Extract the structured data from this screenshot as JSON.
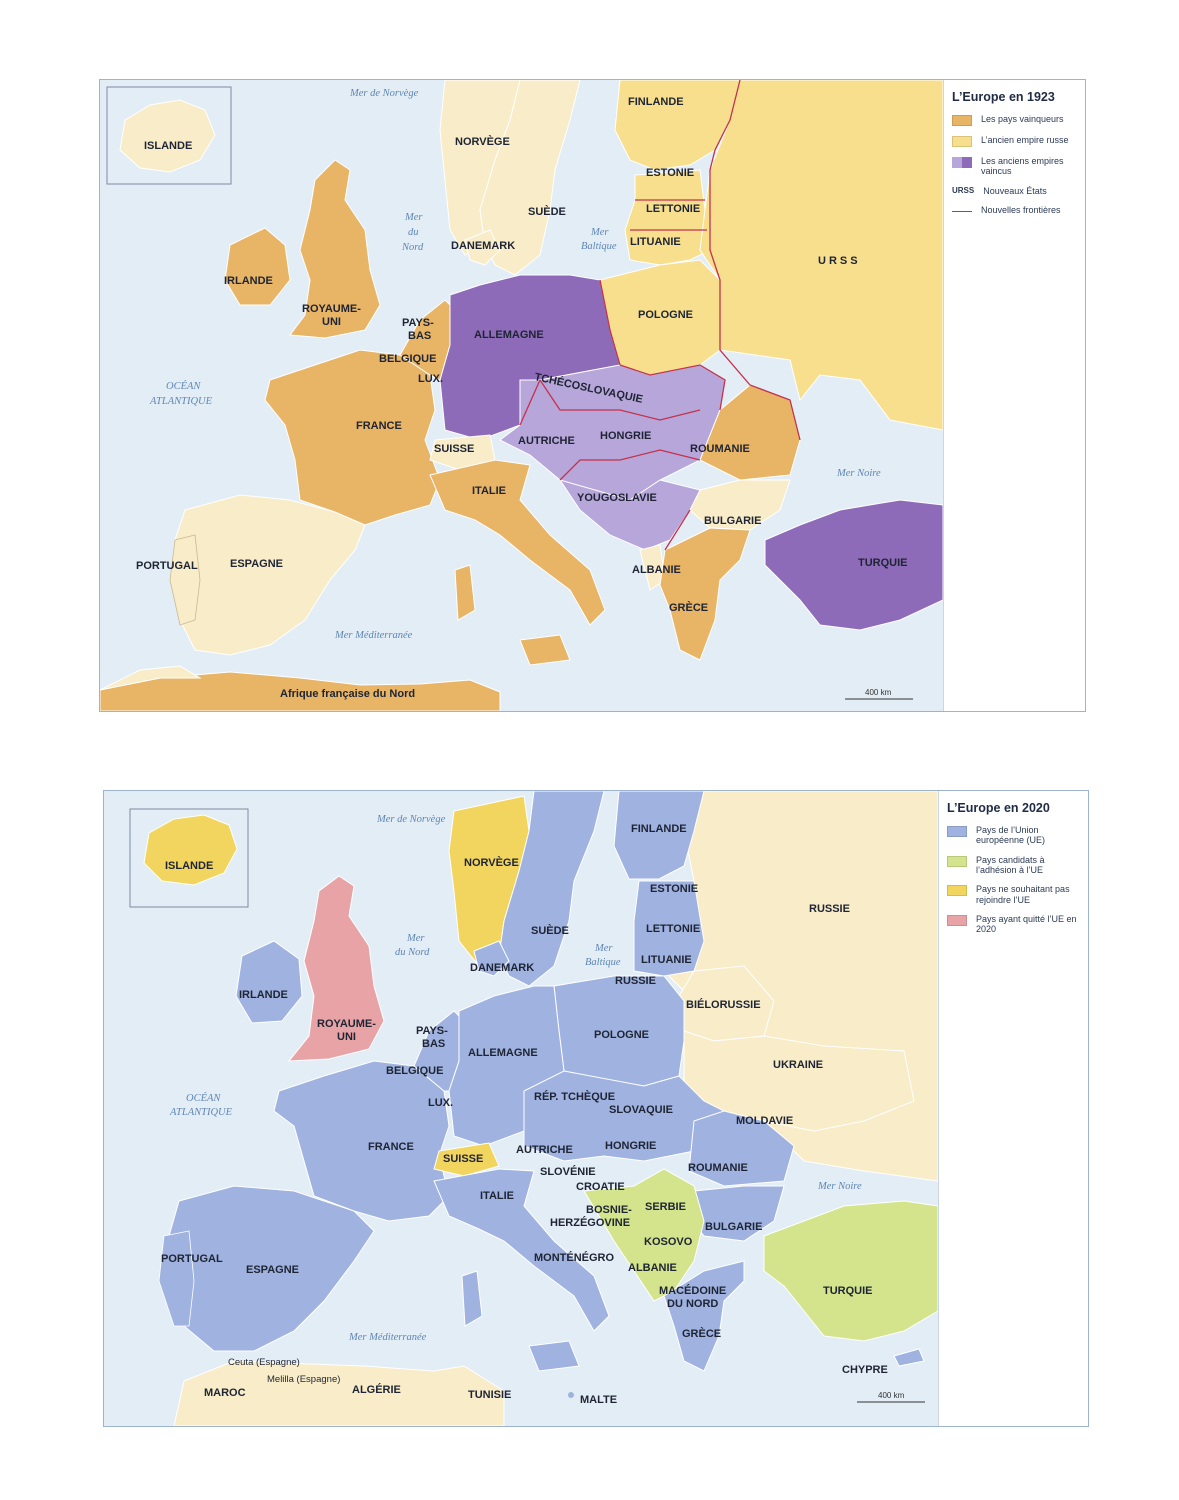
{
  "map1923": {
    "title": "L’Europe en 1923",
    "legend": [
      {
        "label": "Les pays vainqueurs",
        "color": "#e8b466"
      },
      {
        "label": "L’ancien empire russe",
        "color": "#f7df8e"
      },
      {
        "label": "Les anciens empires vaincus",
        "colors": [
          "#b7a6da",
          "#8e6bb8"
        ]
      },
      {
        "abbr": "URSS",
        "label": "Nouveaux États"
      },
      {
        "label": "Nouvelles frontières",
        "color": "#c4314b"
      }
    ],
    "countries": {
      "islande": "ISLANDE",
      "norvege": "NORVÈGE",
      "suede": "SUÈDE",
      "finlande": "FINLANDE",
      "estonie": "ESTONIE",
      "lettonie": "LETTONIE",
      "lituanie": "LITUANIE",
      "danemark": "DANEMARK",
      "irlande": "IRLANDE",
      "royaume_uni_1": "ROYAUME-",
      "royaume_uni_2": "UNI",
      "pays_bas_1": "PAYS-",
      "pays_bas_2": "BAS",
      "belgique": "BELGIQUE",
      "lux": "LUX.",
      "allemagne": "ALLEMAGNE",
      "pologne": "POLOGNE",
      "urss": "URSS",
      "tchecoslovaquie": "TCHÉCOSLOVAQUIE",
      "france": "FRANCE",
      "suisse": "SUISSE",
      "autriche": "AUTRICHE",
      "hongrie": "HONGRIE",
      "roumanie": "ROUMANIE",
      "italie": "ITALIE",
      "yougoslavie": "YOUGOSLAVIE",
      "bulgarie": "BULGARIE",
      "portugal": "PORTUGAL",
      "espagne": "ESPAGNE",
      "albanie": "ALBANIE",
      "grece": "GRÈCE",
      "turquie": "TURQUIE",
      "afrique": "Afrique française du Nord"
    },
    "seas": {
      "norvege_1": "Mer de Norvège",
      "nord_1": "Mer",
      "nord_2": "du",
      "nord_3": "Nord",
      "baltique_1": "Mer",
      "baltique_2": "Baltique",
      "atlantique_1": "OCÉAN",
      "atlantique_2": "ATLANTIQUE",
      "noire": "Mer Noire",
      "mediterranee": "Mer Méditerranée"
    },
    "scale": "400 km"
  },
  "map2020": {
    "title": "L’Europe en 2020",
    "legend": [
      {
        "label": "Pays de l’Union européenne (UE)",
        "color": "#9fb2e0"
      },
      {
        "label": "Pays candidats à l’adhésion à l’UE",
        "color": "#d3e48c"
      },
      {
        "label": "Pays ne souhaitant pas rejoindre l’UE",
        "color": "#f2d55e"
      },
      {
        "label": "Pays ayant quitté l’UE en 2020",
        "color": "#e8a3a6"
      }
    ],
    "countries": {
      "islande": "ISLANDE",
      "norvege": "NORVÈGE",
      "suede": "SUÈDE",
      "finlande": "FINLANDE",
      "estonie": "ESTONIE",
      "lettonie": "LETTONIE",
      "lituanie": "LITUANIE",
      "russie_kal": "RUSSIE",
      "russie": "RUSSIE",
      "danemark": "DANEMARK",
      "irlande": "IRLANDE",
      "royaume_uni_1": "ROYAUME-",
      "royaume_uni_2": "UNI",
      "pays_bas_1": "PAYS-",
      "pays_bas_2": "BAS",
      "belgique": "BELGIQUE",
      "lux": "LUX.",
      "allemagne": "ALLEMAGNE",
      "pologne": "POLOGNE",
      "bielorussie": "BIÉLORUSSIE",
      "ukraine": "UKRAINE",
      "rep_tcheque": "RÉP. TCHÈQUE",
      "slovaquie": "SLOVAQUIE",
      "moldavie": "MOLDAVIE",
      "france": "FRANCE",
      "suisse": "SUISSE",
      "autriche": "AUTRICHE",
      "hongrie": "HONGRIE",
      "roumanie": "ROUMANIE",
      "slovenie": "SLOVÉNIE",
      "croatie": "CROATIE",
      "italie": "ITALIE",
      "bosnie_1": "BOSNIE-",
      "bosnie_2": "HERZÉGOVINE",
      "serbie": "SERBIE",
      "bulgarie": "BULGARIE",
      "kosovo": "KOSOVO",
      "montenegro": "MONTÉNÉGRO",
      "albanie": "ALBANIE",
      "macedoine_1": "MACÉDOINE",
      "macedoine_2": "DU NORD",
      "portugal": "PORTUGAL",
      "espagne": "ESPAGNE",
      "grece": "GRÈCE",
      "turquie": "TURQUIE",
      "chypre": "CHYPRE",
      "malte": "MALTE",
      "maroc": "MAROC",
      "algerie": "ALGÉRIE",
      "tunisie": "TUNISIE",
      "ceuta": "Ceuta (Espagne)",
      "melilla": "Melilla (Espagne)"
    },
    "seas": {
      "norvege_1": "Mer de Norvège",
      "nord_1": "Mer",
      "nord_2": "du Nord",
      "baltique_1": "Mer",
      "baltique_2": "Baltique",
      "atlantique_1": "OCÉAN",
      "atlantique_2": "ATLANTIQUE",
      "noire": "Mer Noire",
      "mediterranee": "Mer Méditerranée"
    },
    "scale": "400 km"
  }
}
